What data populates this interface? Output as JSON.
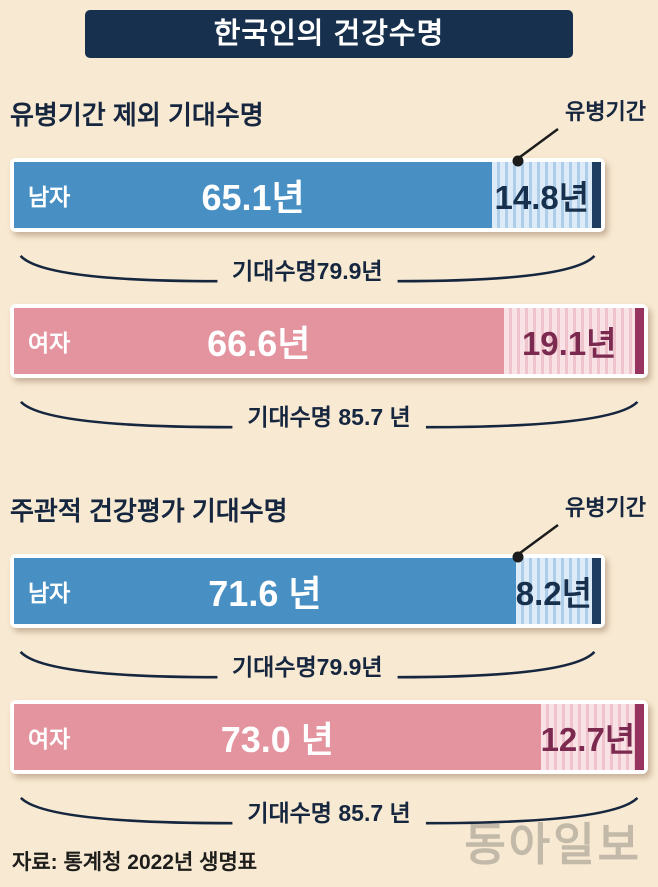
{
  "title": "한국인의 건강수명",
  "source": "자료: 통계청 2022년 생명표",
  "watermark": "동아일보",
  "colors": {
    "background": "#f8e9d2",
    "header_bg": "#17304d",
    "male_bar": "#4890c4",
    "male_cap": "#1e3d60",
    "female_bar": "#e4949f",
    "female_cap": "#97335f"
  },
  "sections": [
    {
      "title": "유병기간 제외 기대수명",
      "annotation": "유병기간",
      "bars": [
        {
          "label": "남자",
          "value_text": "65.1년",
          "disease_text": "14.8년",
          "total_text": "기대수명79.9년",
          "bar_w": "93.2%",
          "solid_w": "81.5%"
        },
        {
          "label": "여자",
          "value_text": "66.6년",
          "disease_text": "19.1년",
          "total_text": "기대수명 85.7 년",
          "bar_w": "100%",
          "solid_w": "77.7%"
        }
      ]
    },
    {
      "title": "주관적 건강평가 기대수명",
      "annotation": "유병기간",
      "bars": [
        {
          "label": "남자",
          "value_text": "71.6 년",
          "disease_text": "8.2년",
          "total_text": "기대수명79.9년",
          "bar_w": "93.2%",
          "solid_w": "89.6%"
        },
        {
          "label": "여자",
          "value_text": "73.0 년",
          "disease_text": "12.7년",
          "total_text": "기대수명 85.7 년",
          "bar_w": "100%",
          "solid_w": "85.2%"
        }
      ]
    }
  ],
  "chart_data": [
    {
      "type": "bar",
      "orientation": "horizontal",
      "stacked": true,
      "title": "유병기간 제외 기대수명",
      "unit": "년",
      "categories": [
        "남자",
        "여자"
      ],
      "series": [
        {
          "name": "유병기간 제외 기대수명",
          "values": [
            65.1,
            66.6
          ]
        },
        {
          "name": "유병기간",
          "values": [
            14.8,
            19.1
          ]
        }
      ],
      "totals": {
        "label": "기대수명",
        "values": [
          79.9,
          85.7
        ]
      }
    },
    {
      "type": "bar",
      "orientation": "horizontal",
      "stacked": true,
      "title": "주관적 건강평가 기대수명",
      "unit": "년",
      "categories": [
        "남자",
        "여자"
      ],
      "series": [
        {
          "name": "주관적 건강평가 기대수명",
          "values": [
            71.6,
            73.0
          ]
        },
        {
          "name": "유병기간",
          "values": [
            8.2,
            12.7
          ]
        }
      ],
      "totals": {
        "label": "기대수명",
        "values": [
          79.9,
          85.7
        ]
      }
    }
  ]
}
